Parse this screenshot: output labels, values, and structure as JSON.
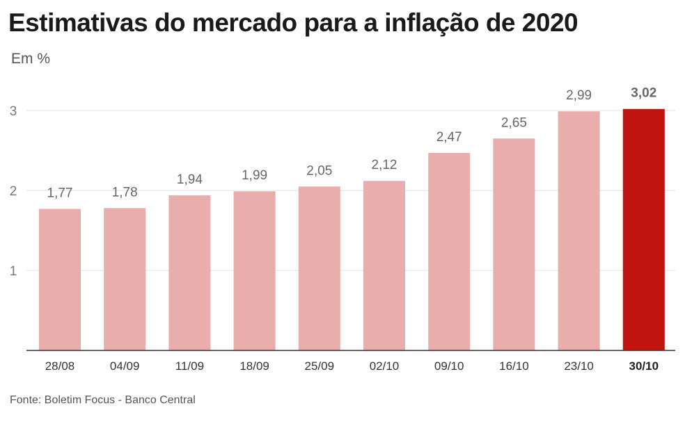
{
  "title": "Estimativas do mercado para a inflação de 2020",
  "subtitle": "Em %",
  "source": "Fonte: Boletim Focus - Banco Central",
  "colors": {
    "bar": "#e9aeab",
    "highlight": "#c0140e",
    "grid": "#e3e3e3",
    "axis": "#333333",
    "label": "#666666",
    "highlight_label": "#666666"
  },
  "chart_data": {
    "type": "bar",
    "categories": [
      "28/08",
      "04/09",
      "11/09",
      "18/09",
      "25/09",
      "02/10",
      "09/10",
      "16/10",
      "23/10",
      "30/10"
    ],
    "values": [
      1.77,
      1.78,
      1.94,
      1.99,
      2.05,
      2.12,
      2.47,
      2.65,
      2.99,
      3.02
    ],
    "value_labels": [
      "1,77",
      "1,78",
      "1,94",
      "1,99",
      "2,05",
      "2,12",
      "2,47",
      "2,65",
      "2,99",
      "3,02"
    ],
    "highlighted_category": "30/10",
    "y_ticks": [
      1,
      2,
      3
    ],
    "y_tick_labels": [
      "1",
      "2",
      "3"
    ],
    "ylim": [
      0,
      3.02
    ],
    "grid": true,
    "xlabel": "",
    "ylabel": ""
  }
}
